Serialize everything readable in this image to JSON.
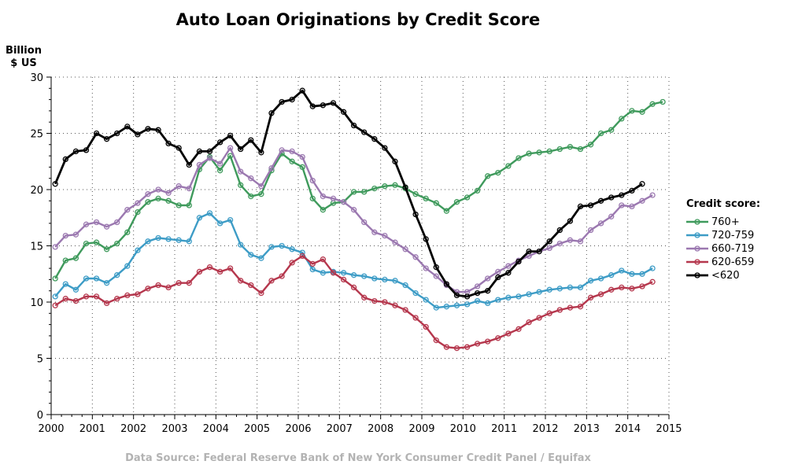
{
  "chart_data": {
    "type": "line",
    "title": "Auto Loan Originations by Credit Score",
    "ylabel": [
      "Billion",
      "$ US"
    ],
    "xlabel": "",
    "xlim": [
      2000,
      2015
    ],
    "ylim": [
      0,
      30
    ],
    "xticks": [
      "2000",
      "2001",
      "2002",
      "2003",
      "2004",
      "2005",
      "2006",
      "2007",
      "2008",
      "2009",
      "2010",
      "2011",
      "2012",
      "2013",
      "2014",
      "2015"
    ],
    "yticks": [
      "0",
      "5",
      "10",
      "15",
      "20",
      "25",
      "30"
    ],
    "grid": true,
    "legend": {
      "title": "Credit score:",
      "position": "right"
    },
    "x_start": 2000.1,
    "x_step": 0.25,
    "series": [
      {
        "name": "760+",
        "color": "#3f9a5c",
        "values": [
          12.1,
          13.7,
          13.9,
          15.2,
          15.3,
          14.7,
          15.2,
          16.2,
          18.0,
          18.9,
          19.2,
          19.0,
          18.6,
          18.6,
          21.8,
          22.9,
          21.7,
          23.0,
          20.4,
          19.4,
          19.6,
          21.7,
          23.2,
          22.5,
          22.0,
          19.2,
          18.2,
          18.8,
          18.9,
          19.8,
          19.8,
          20.1,
          20.3,
          20.4,
          20.1,
          19.6,
          19.2,
          18.8,
          18.1,
          18.9,
          19.3,
          19.9,
          21.2,
          21.5,
          22.1,
          22.8,
          23.2,
          23.3,
          23.4,
          23.6,
          23.8,
          23.6,
          24.0,
          25.0,
          25.3,
          26.3,
          27.0,
          26.9,
          27.6,
          27.8
        ]
      },
      {
        "name": "720-759",
        "color": "#3d9cc6",
        "values": [
          10.5,
          11.6,
          11.1,
          12.1,
          12.1,
          11.7,
          12.4,
          13.2,
          14.6,
          15.4,
          15.7,
          15.6,
          15.5,
          15.4,
          17.5,
          17.9,
          17.0,
          17.3,
          15.1,
          14.2,
          13.9,
          14.9,
          15.0,
          14.7,
          14.4,
          12.9,
          12.6,
          12.7,
          12.6,
          12.4,
          12.3,
          12.1,
          12.0,
          11.9,
          11.5,
          10.8,
          10.2,
          9.5,
          9.6,
          9.7,
          9.8,
          10.1,
          9.9,
          10.2,
          10.4,
          10.5,
          10.7,
          10.9,
          11.1,
          11.2,
          11.3,
          11.3,
          11.9,
          12.1,
          12.4,
          12.8,
          12.5,
          12.5,
          13.0
        ]
      },
      {
        "name": "660-719",
        "color": "#9b78b0",
        "values": [
          14.9,
          15.9,
          16.0,
          16.9,
          17.1,
          16.7,
          17.1,
          18.2,
          18.8,
          19.6,
          20.0,
          19.7,
          20.3,
          20.1,
          22.2,
          22.8,
          22.3,
          23.7,
          21.6,
          21.0,
          20.3,
          21.9,
          23.5,
          23.4,
          22.9,
          20.8,
          19.4,
          19.2,
          18.9,
          18.2,
          17.1,
          16.2,
          15.9,
          15.3,
          14.7,
          14.0,
          13.0,
          12.3,
          11.5,
          10.9,
          10.9,
          11.4,
          12.1,
          12.7,
          13.2,
          13.7,
          14.1,
          14.5,
          14.8,
          15.2,
          15.5,
          15.4,
          16.4,
          17.0,
          17.6,
          18.6,
          18.5,
          19.0,
          19.5
        ]
      },
      {
        "name": "620-659",
        "color": "#b5374d",
        "values": [
          9.7,
          10.3,
          10.1,
          10.5,
          10.5,
          9.9,
          10.3,
          10.6,
          10.7,
          11.2,
          11.5,
          11.3,
          11.7,
          11.7,
          12.7,
          13.1,
          12.7,
          13.0,
          11.9,
          11.5,
          10.8,
          11.9,
          12.3,
          13.5,
          14.1,
          13.4,
          13.8,
          12.6,
          12.0,
          11.3,
          10.4,
          10.1,
          10.0,
          9.7,
          9.3,
          8.6,
          7.8,
          6.6,
          6.0,
          5.9,
          6.0,
          6.3,
          6.5,
          6.8,
          7.2,
          7.6,
          8.2,
          8.6,
          9.0,
          9.3,
          9.5,
          9.6,
          10.4,
          10.7,
          11.1,
          11.3,
          11.2,
          11.4,
          11.8
        ]
      },
      {
        "name": "<620",
        "color": "#000000",
        "values": [
          20.5,
          22.7,
          23.4,
          23.5,
          25.0,
          24.5,
          25.0,
          25.6,
          24.9,
          25.4,
          25.3,
          24.1,
          23.7,
          22.2,
          23.4,
          23.4,
          24.2,
          24.8,
          23.6,
          24.4,
          23.3,
          26.8,
          27.8,
          28.0,
          28.8,
          27.4,
          27.5,
          27.7,
          26.9,
          25.7,
          25.1,
          24.5,
          23.7,
          22.5,
          20.2,
          17.8,
          15.6,
          13.1,
          11.6,
          10.6,
          10.5,
          10.8,
          11.0,
          12.2,
          12.6,
          13.6,
          14.5,
          14.5,
          15.4,
          16.4,
          17.2,
          18.5,
          18.6,
          19.0,
          19.3,
          19.5,
          19.9,
          20.5
        ]
      }
    ]
  },
  "footer": {
    "source": "Data Source: Federal Reserve Bank of New York Consumer Credit Panel / Equifax"
  }
}
